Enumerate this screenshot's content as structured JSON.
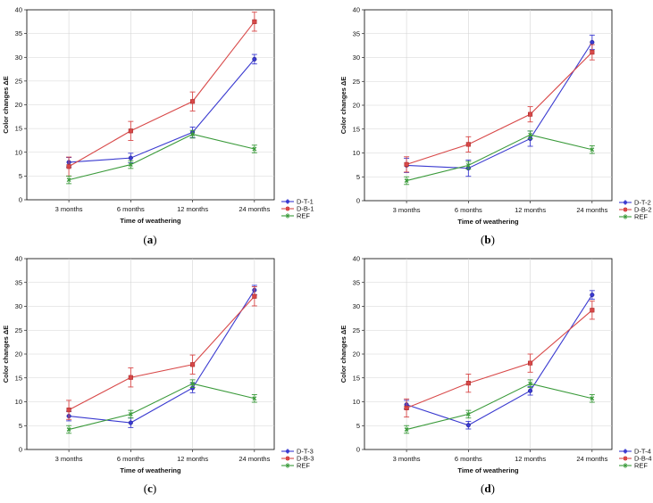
{
  "chart_data": [
    {
      "type": "line",
      "panel_label": "a",
      "xlabel": "Time of weathering",
      "ylabel": "Color changes ΔE",
      "categories": [
        "3 months",
        "6 months",
        "12 months",
        "24 months"
      ],
      "ylim": [
        0,
        40
      ],
      "yticks": [
        0,
        5,
        10,
        15,
        20,
        25,
        30,
        35,
        40
      ],
      "grid": true,
      "legend_position": "bottom-right",
      "series": [
        {
          "name": "D-T-1",
          "color": "#3a3ad0",
          "marker": "circle",
          "x_index": [
            0,
            1,
            2,
            3
          ],
          "values": [
            7.9,
            8.8,
            14.2,
            29.6
          ],
          "errors": [
            1.0,
            1.0,
            1.1,
            1.0
          ]
        },
        {
          "name": "D-B-1",
          "color": "#d84848",
          "marker": "square",
          "x_index": [
            0,
            1,
            2,
            3
          ],
          "values": [
            7.0,
            14.5,
            20.7,
            37.5
          ],
          "errors": [
            2.0,
            2.0,
            2.0,
            2.0
          ]
        },
        {
          "name": "REF",
          "color": "#3a9a3a",
          "marker": "x",
          "x_index": [
            0,
            1,
            2,
            3
          ],
          "values": [
            4.2,
            7.4,
            13.8,
            10.7
          ],
          "errors": [
            0.8,
            0.8,
            0.8,
            0.8
          ]
        }
      ]
    },
    {
      "type": "line",
      "panel_label": "b",
      "xlabel": "Time of weathering",
      "ylabel": "Color changes ΔE",
      "categories": [
        "3 months",
        "6 months",
        "12 months",
        "24 months"
      ],
      "ylim": [
        0,
        40
      ],
      "yticks": [
        0,
        5,
        10,
        15,
        20,
        25,
        30,
        35,
        40
      ],
      "grid": true,
      "legend_position": "bottom-right",
      "series": [
        {
          "name": "D-T-2",
          "color": "#3a3ad0",
          "marker": "circle",
          "x_index": [
            0,
            1,
            2,
            3
          ],
          "values": [
            7.4,
            6.8,
            13.0,
            33.2
          ],
          "errors": [
            1.5,
            1.7,
            1.6,
            1.5
          ]
        },
        {
          "name": "D-B-2",
          "color": "#d84848",
          "marker": "square",
          "x_index": [
            0,
            1,
            2,
            3
          ],
          "values": [
            7.6,
            11.8,
            18.1,
            31.1
          ],
          "errors": [
            1.6,
            1.6,
            1.6,
            1.6
          ]
        },
        {
          "name": "REF",
          "color": "#3a9a3a",
          "marker": "x",
          "x_index": [
            0,
            1,
            2,
            3
          ],
          "values": [
            4.2,
            7.4,
            13.8,
            10.7
          ],
          "errors": [
            0.8,
            0.8,
            0.8,
            0.8
          ]
        }
      ]
    },
    {
      "type": "line",
      "panel_label": "c",
      "xlabel": "Time of weathering",
      "ylabel": "Color changes ΔE",
      "categories": [
        "3 months",
        "6 months",
        "12 months",
        "24 months"
      ],
      "ylim": [
        0,
        40
      ],
      "yticks": [
        0,
        5,
        10,
        15,
        20,
        25,
        30,
        35,
        40
      ],
      "grid": true,
      "legend_position": "bottom-right",
      "series": [
        {
          "name": "D-T-3",
          "color": "#3a3ad0",
          "marker": "circle",
          "x_index": [
            0,
            1,
            2,
            3
          ],
          "values": [
            7.0,
            5.6,
            12.9,
            33.4
          ],
          "errors": [
            1.0,
            1.0,
            1.0,
            1.0
          ]
        },
        {
          "name": "D-B-3",
          "color": "#d84848",
          "marker": "square",
          "x_index": [
            0,
            1,
            2,
            3
          ],
          "values": [
            8.3,
            15.1,
            17.8,
            32.1
          ],
          "errors": [
            2.0,
            2.0,
            2.0,
            2.0
          ]
        },
        {
          "name": "REF",
          "color": "#3a9a3a",
          "marker": "x",
          "x_index": [
            0,
            1,
            2,
            3
          ],
          "values": [
            4.2,
            7.4,
            13.8,
            10.7
          ],
          "errors": [
            0.8,
            0.8,
            0.8,
            0.8
          ]
        }
      ]
    },
    {
      "type": "line",
      "panel_label": "d",
      "xlabel": "Time of weathering",
      "ylabel": "Color changes ΔE",
      "categories": [
        "3 months",
        "6 months",
        "12 months",
        "24 months"
      ],
      "ylim": [
        0,
        40
      ],
      "yticks": [
        0,
        5,
        10,
        15,
        20,
        25,
        30,
        35,
        40
      ],
      "grid": true,
      "legend_position": "bottom-right",
      "series": [
        {
          "name": "D-T-4",
          "color": "#3a3ad0",
          "marker": "circle",
          "x_index": [
            0,
            1,
            2,
            3
          ],
          "values": [
            9.4,
            5.1,
            12.3,
            32.4
          ],
          "errors": [
            0.9,
            0.8,
            0.9,
            0.9
          ]
        },
        {
          "name": "D-B-4",
          "color": "#d84848",
          "marker": "square",
          "x_index": [
            0,
            1,
            2,
            3
          ],
          "values": [
            8.7,
            13.9,
            18.1,
            29.2
          ],
          "errors": [
            1.9,
            1.9,
            1.9,
            1.9
          ]
        },
        {
          "name": "REF",
          "color": "#3a9a3a",
          "marker": "x",
          "x_index": [
            0,
            1,
            2,
            3
          ],
          "values": [
            4.2,
            7.4,
            13.8,
            10.7
          ],
          "errors": [
            0.8,
            0.8,
            0.8,
            0.8
          ]
        }
      ]
    }
  ],
  "captions": [
    "(a)",
    "(b)",
    "(c)",
    "(d)"
  ]
}
